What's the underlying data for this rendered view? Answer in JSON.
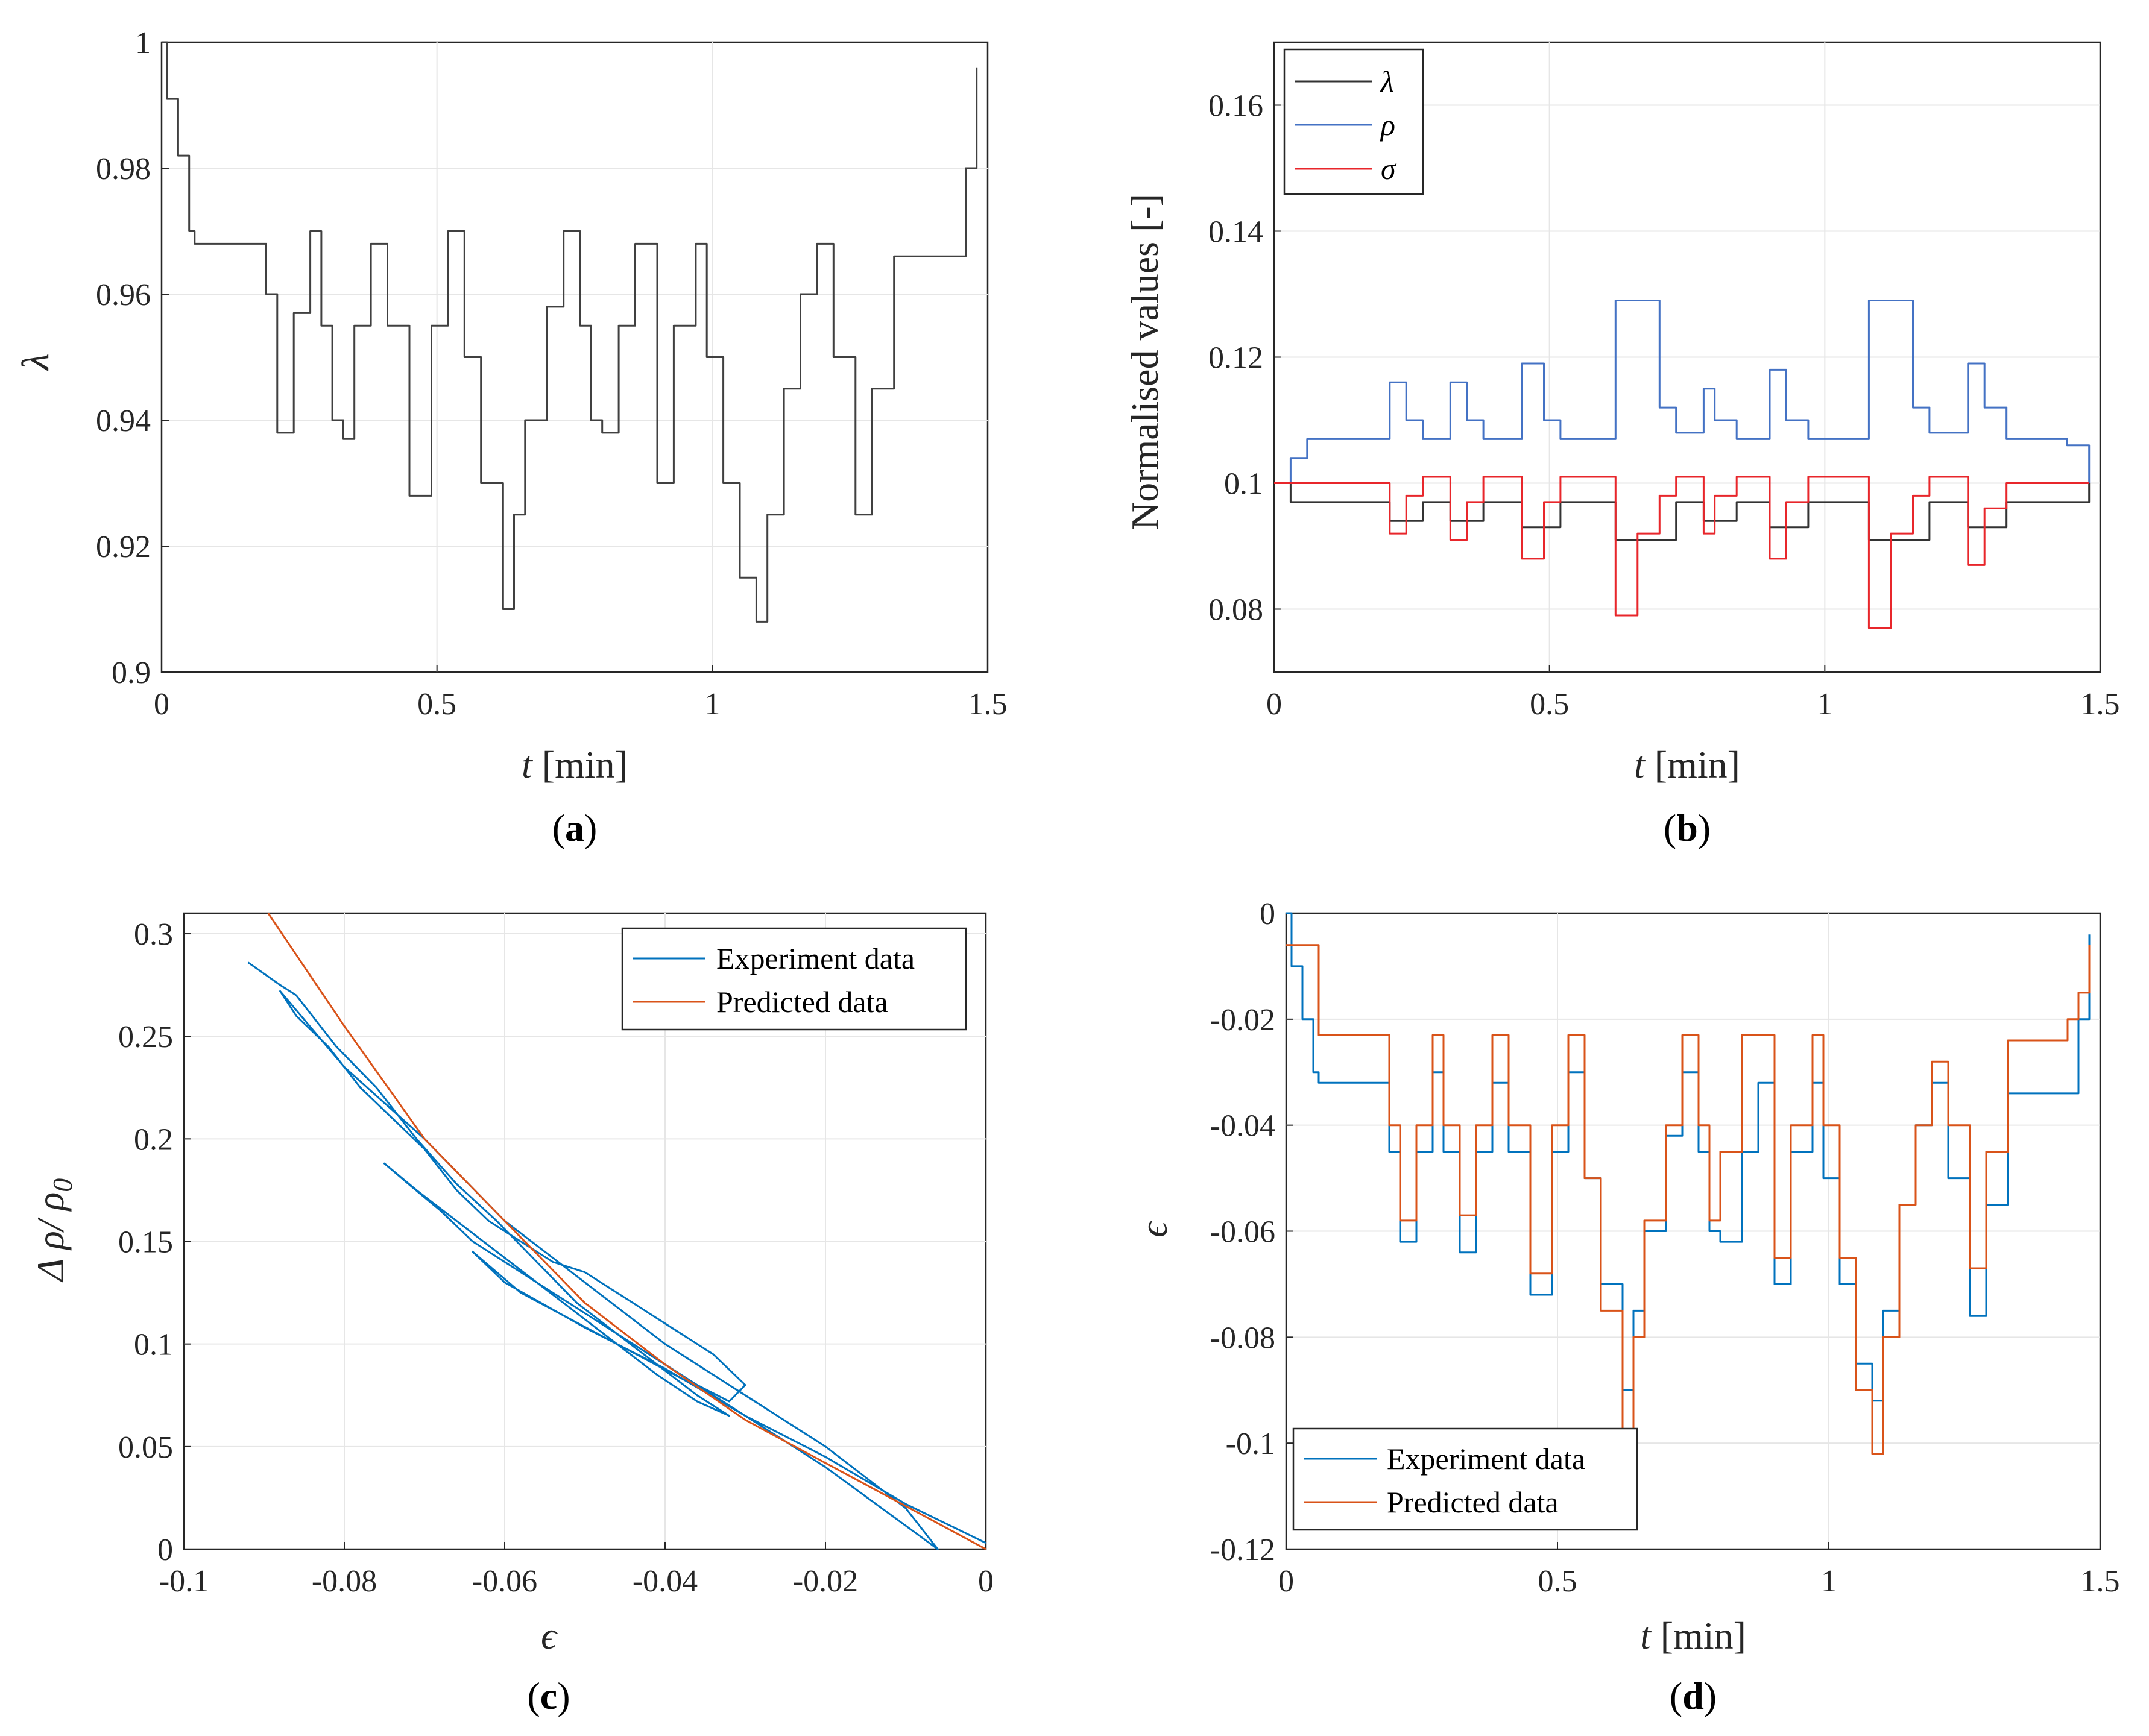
{
  "colors": {
    "black": "#333333",
    "blue": "#4472c4",
    "red": "#e8262b",
    "matlab_blue": "#0072bd",
    "matlab_orange": "#d95319"
  },
  "chart_data": [
    {
      "id": "a",
      "type": "line",
      "caption_letter": "a",
      "xlabel_var": "t",
      "xlabel_unit": "[min]",
      "ylabel": "λ",
      "xlim": [
        0,
        1.5
      ],
      "ylim": [
        0.9,
        1.0
      ],
      "xticks": [
        "0",
        "0.5",
        "1",
        "1.5"
      ],
      "yticks": [
        "0.9",
        "0.92",
        "0.94",
        "0.96",
        "0.98",
        "1"
      ],
      "series": [
        {
          "name": "λ",
          "color": "#404040",
          "x": [
            0,
            0.01,
            0.03,
            0.05,
            0.06,
            0.17,
            0.19,
            0.21,
            0.24,
            0.27,
            0.29,
            0.31,
            0.33,
            0.35,
            0.38,
            0.41,
            0.45,
            0.49,
            0.52,
            0.55,
            0.58,
            0.62,
            0.64,
            0.66,
            0.7,
            0.73,
            0.76,
            0.78,
            0.8,
            0.83,
            0.86,
            0.9,
            0.93,
            0.97,
            0.99,
            1.02,
            1.05,
            1.08,
            1.1,
            1.13,
            1.16,
            1.19,
            1.22,
            1.26,
            1.29,
            1.33,
            1.44,
            1.46,
            1.48
          ],
          "y": [
            1.0,
            0.991,
            0.982,
            0.97,
            0.968,
            0.968,
            0.96,
            0.938,
            0.957,
            0.97,
            0.955,
            0.94,
            0.937,
            0.955,
            0.968,
            0.955,
            0.928,
            0.955,
            0.97,
            0.95,
            0.93,
            0.91,
            0.925,
            0.94,
            0.958,
            0.97,
            0.955,
            0.94,
            0.938,
            0.955,
            0.968,
            0.93,
            0.955,
            0.968,
            0.95,
            0.93,
            0.915,
            0.908,
            0.925,
            0.945,
            0.96,
            0.968,
            0.95,
            0.925,
            0.945,
            0.966,
            0.966,
            0.98,
            0.996
          ]
        }
      ]
    },
    {
      "id": "b",
      "type": "line",
      "caption_letter": "b",
      "xlabel_var": "t",
      "xlabel_unit": "[min]",
      "ylabel": "Normalised values [-]",
      "xlim": [
        0,
        1.5
      ],
      "ylim": [
        0.07,
        0.17
      ],
      "xticks": [
        "0",
        "0.5",
        "1",
        "1.5"
      ],
      "yticks": [
        "0.08",
        "0.1",
        "0.12",
        "0.14",
        "0.16"
      ],
      "legend": [
        "λ",
        "ρ",
        "σ"
      ],
      "series": [
        {
          "name": "λ",
          "color": "#333333",
          "x": [
            0,
            0.03,
            0.06,
            0.17,
            0.21,
            0.27,
            0.32,
            0.38,
            0.45,
            0.52,
            0.62,
            0.73,
            0.78,
            0.84,
            0.9,
            0.97,
            1.08,
            1.19,
            1.26,
            1.33,
            1.44,
            1.48
          ],
          "y": [
            0.1,
            0.097,
            0.097,
            0.097,
            0.094,
            0.097,
            0.094,
            0.097,
            0.093,
            0.097,
            0.091,
            0.097,
            0.094,
            0.097,
            0.093,
            0.097,
            0.091,
            0.097,
            0.093,
            0.097,
            0.097,
            0.1
          ]
        },
        {
          "name": "ρ",
          "color": "#4472c4",
          "x": [
            0,
            0.03,
            0.06,
            0.17,
            0.21,
            0.24,
            0.27,
            0.32,
            0.35,
            0.38,
            0.45,
            0.49,
            0.52,
            0.62,
            0.7,
            0.73,
            0.78,
            0.8,
            0.84,
            0.9,
            0.93,
            0.97,
            1.08,
            1.16,
            1.19,
            1.26,
            1.29,
            1.33,
            1.44,
            1.48
          ],
          "y": [
            0.1,
            0.104,
            0.107,
            0.107,
            0.116,
            0.11,
            0.107,
            0.116,
            0.11,
            0.107,
            0.119,
            0.11,
            0.107,
            0.129,
            0.112,
            0.108,
            0.115,
            0.11,
            0.107,
            0.118,
            0.11,
            0.107,
            0.129,
            0.112,
            0.108,
            0.119,
            0.112,
            0.107,
            0.106,
            0.1
          ]
        },
        {
          "name": "σ",
          "color": "#e8262b",
          "x": [
            0,
            0.06,
            0.17,
            0.21,
            0.24,
            0.27,
            0.32,
            0.35,
            0.38,
            0.45,
            0.49,
            0.52,
            0.62,
            0.66,
            0.7,
            0.73,
            0.78,
            0.8,
            0.84,
            0.9,
            0.93,
            0.97,
            1.08,
            1.12,
            1.16,
            1.19,
            1.26,
            1.29,
            1.33,
            1.44,
            1.48
          ],
          "y": [
            0.1,
            0.1,
            0.1,
            0.092,
            0.098,
            0.101,
            0.091,
            0.097,
            0.101,
            0.088,
            0.097,
            0.101,
            0.079,
            0.092,
            0.098,
            0.101,
            0.092,
            0.098,
            0.101,
            0.088,
            0.097,
            0.101,
            0.077,
            0.092,
            0.098,
            0.101,
            0.087,
            0.096,
            0.1,
            0.1,
            0.1
          ]
        }
      ]
    },
    {
      "id": "c",
      "type": "line",
      "caption_letter": "c",
      "xlabel": "ϵ",
      "ylabel_main": "Δ ρ/ ρ",
      "ylabel_sub": "0",
      "xlim": [
        -0.1,
        0
      ],
      "ylim": [
        0,
        0.31
      ],
      "xticks": [
        "-0.1",
        "-0.08",
        "-0.06",
        "-0.04",
        "-0.02",
        "0"
      ],
      "yticks": [
        "0",
        "0.05",
        "0.1",
        "0.15",
        "0.2",
        "0.25",
        "0.3"
      ],
      "legend": [
        "Experiment data",
        "Predicted data"
      ],
      "series": [
        {
          "name": "Experiment data",
          "color": "#0072bd",
          "x": [
            -0.092,
            -0.088,
            -0.086,
            -0.081,
            -0.076,
            -0.071,
            -0.066,
            -0.061,
            -0.056,
            -0.051,
            -0.046,
            -0.041,
            -0.036,
            -0.032,
            -0.036,
            -0.041,
            -0.046,
            -0.051,
            -0.056,
            -0.061,
            -0.066,
            -0.071,
            -0.075,
            -0.072,
            -0.068,
            -0.064,
            -0.06,
            -0.056,
            -0.052,
            -0.048,
            -0.044,
            -0.04,
            -0.036,
            -0.032,
            -0.03,
            -0.034,
            -0.038,
            -0.042,
            -0.046,
            -0.05,
            -0.054,
            -0.058,
            -0.062,
            -0.066,
            -0.07,
            -0.074,
            -0.078,
            -0.082,
            -0.086,
            -0.088,
            -0.08,
            -0.07,
            -0.06,
            -0.05,
            -0.04,
            -0.03,
            -0.02,
            -0.01,
            -0.006,
            -0.02,
            -0.034,
            -0.046,
            -0.058,
            -0.064,
            -0.06,
            -0.05,
            -0.04,
            -0.03,
            -0.02,
            -0.01,
            0
          ],
          "y": [
            0.286,
            0.275,
            0.27,
            0.245,
            0.225,
            0.2,
            0.178,
            0.16,
            0.14,
            0.12,
            0.105,
            0.09,
            0.075,
            0.065,
            0.072,
            0.085,
            0.1,
            0.115,
            0.13,
            0.145,
            0.16,
            0.175,
            0.188,
            0.178,
            0.165,
            0.15,
            0.14,
            0.13,
            0.12,
            0.11,
            0.1,
            0.09,
            0.08,
            0.072,
            0.08,
            0.095,
            0.105,
            0.115,
            0.125,
            0.135,
            0.14,
            0.15,
            0.16,
            0.175,
            0.195,
            0.21,
            0.225,
            0.245,
            0.26,
            0.272,
            0.235,
            0.2,
            0.16,
            0.13,
            0.1,
            0.075,
            0.05,
            0.02,
            0.0,
            0.04,
            0.075,
            0.1,
            0.125,
            0.145,
            0.13,
            0.108,
            0.088,
            0.065,
            0.045,
            0.022,
            0.003
          ]
        },
        {
          "name": "Predicted data",
          "color": "#d95319",
          "x": [
            -0.0895,
            -0.08,
            -0.07,
            -0.06,
            -0.05,
            -0.04,
            -0.03,
            -0.02,
            -0.01,
            0
          ],
          "y": [
            0.31,
            0.255,
            0.2,
            0.16,
            0.12,
            0.09,
            0.063,
            0.042,
            0.021,
            0.0
          ]
        }
      ]
    },
    {
      "id": "d",
      "type": "line",
      "caption_letter": "d",
      "xlabel_var": "t",
      "xlabel_unit": "[min]",
      "ylabel": "ϵ",
      "xlim": [
        0,
        1.5
      ],
      "ylim": [
        -0.12,
        0
      ],
      "xticks": [
        "0",
        "0.5",
        "1",
        "1.5"
      ],
      "yticks": [
        "-0.12",
        "-0.1",
        "-0.08",
        "-0.06",
        "-0.04",
        "-0.02",
        "0"
      ],
      "legend": [
        "Experiment data",
        "Predicted data"
      ],
      "series": [
        {
          "name": "Experiment data",
          "color": "#0072bd",
          "x": [
            0,
            0.01,
            0.03,
            0.05,
            0.06,
            0.17,
            0.19,
            0.21,
            0.24,
            0.27,
            0.29,
            0.32,
            0.35,
            0.38,
            0.41,
            0.45,
            0.49,
            0.52,
            0.55,
            0.58,
            0.62,
            0.64,
            0.66,
            0.7,
            0.73,
            0.76,
            0.78,
            0.8,
            0.84,
            0.87,
            0.9,
            0.93,
            0.97,
            0.99,
            1.02,
            1.05,
            1.08,
            1.1,
            1.13,
            1.16,
            1.19,
            1.22,
            1.26,
            1.29,
            1.33,
            1.44,
            1.46,
            1.48
          ],
          "y": [
            0,
            -0.01,
            -0.02,
            -0.03,
            -0.032,
            -0.032,
            -0.045,
            -0.062,
            -0.045,
            -0.03,
            -0.045,
            -0.064,
            -0.045,
            -0.032,
            -0.045,
            -0.072,
            -0.045,
            -0.03,
            -0.05,
            -0.07,
            -0.09,
            -0.075,
            -0.06,
            -0.042,
            -0.03,
            -0.045,
            -0.06,
            -0.062,
            -0.045,
            -0.032,
            -0.07,
            -0.045,
            -0.032,
            -0.05,
            -0.07,
            -0.085,
            -0.092,
            -0.075,
            -0.055,
            -0.04,
            -0.032,
            -0.05,
            -0.076,
            -0.055,
            -0.034,
            -0.034,
            -0.02,
            -0.004
          ]
        },
        {
          "name": "Predicted data",
          "color": "#d95319",
          "x": [
            0,
            0.05,
            0.06,
            0.17,
            0.19,
            0.21,
            0.24,
            0.27,
            0.29,
            0.32,
            0.35,
            0.38,
            0.41,
            0.45,
            0.49,
            0.52,
            0.55,
            0.58,
            0.62,
            0.64,
            0.66,
            0.7,
            0.73,
            0.76,
            0.78,
            0.8,
            0.84,
            0.87,
            0.9,
            0.93,
            0.97,
            0.99,
            1.02,
            1.05,
            1.08,
            1.1,
            1.13,
            1.16,
            1.19,
            1.22,
            1.26,
            1.29,
            1.33,
            1.44,
            1.46,
            1.48
          ],
          "y": [
            -0.006,
            -0.006,
            -0.023,
            -0.023,
            -0.04,
            -0.058,
            -0.04,
            -0.023,
            -0.04,
            -0.057,
            -0.04,
            -0.023,
            -0.04,
            -0.068,
            -0.04,
            -0.023,
            -0.05,
            -0.075,
            -0.1,
            -0.08,
            -0.058,
            -0.04,
            -0.023,
            -0.04,
            -0.058,
            -0.045,
            -0.023,
            -0.023,
            -0.065,
            -0.04,
            -0.023,
            -0.04,
            -0.065,
            -0.09,
            -0.102,
            -0.08,
            -0.055,
            -0.04,
            -0.028,
            -0.04,
            -0.067,
            -0.045,
            -0.024,
            -0.02,
            -0.015,
            -0.006
          ]
        }
      ]
    }
  ]
}
